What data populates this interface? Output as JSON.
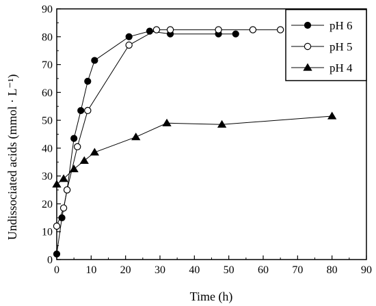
{
  "chart_data": {
    "type": "line",
    "title": "",
    "xlabel": "Time (h)",
    "ylabel": "Undissociated acids (mmol · L⁻¹)",
    "xlim": [
      0,
      90
    ],
    "ylim": [
      0,
      90
    ],
    "xticks": [
      0,
      10,
      20,
      30,
      40,
      50,
      60,
      70,
      80,
      90
    ],
    "yticks": [
      0,
      10,
      20,
      30,
      40,
      50,
      60,
      70,
      80,
      90
    ],
    "grid": false,
    "legend_position": "top-right",
    "series": [
      {
        "name": "pH 6",
        "marker": "filled-circle",
        "color": "#000000",
        "x": [
          0,
          1.5,
          3,
          5,
          7,
          9,
          11,
          21,
          27,
          33,
          47,
          52
        ],
        "y": [
          2,
          15,
          25,
          43.5,
          53.5,
          64,
          71.5,
          80,
          82,
          81,
          81,
          81
        ]
      },
      {
        "name": "pH 5",
        "marker": "open-circle",
        "color": "#000000",
        "x": [
          0,
          2,
          3,
          6,
          9,
          21,
          29,
          33,
          47,
          57,
          65
        ],
        "y": [
          12,
          18.5,
          25,
          40.5,
          53.5,
          77,
          82.5,
          82.5,
          82.5,
          82.5,
          82.5
        ]
      },
      {
        "name": "pH 4",
        "marker": "filled-triangle",
        "color": "#000000",
        "x": [
          0,
          2,
          5,
          8,
          11,
          23,
          32,
          48,
          80
        ],
        "y": [
          27,
          29,
          32.5,
          35.5,
          38.5,
          44,
          49,
          48.5,
          51.5
        ]
      }
    ]
  }
}
